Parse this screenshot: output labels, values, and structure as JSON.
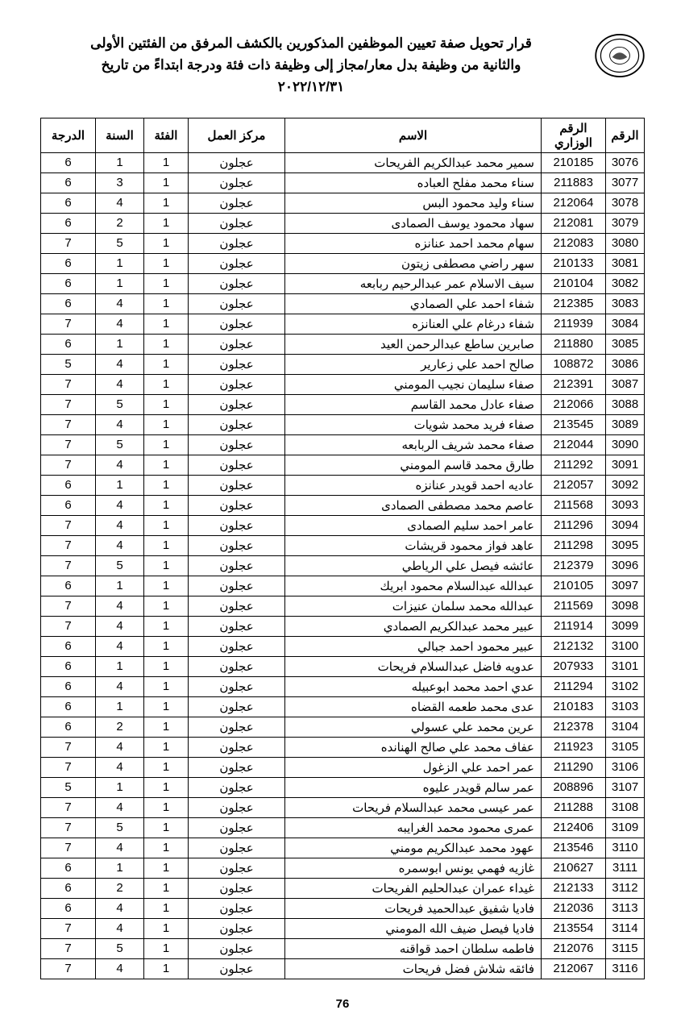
{
  "title": {
    "line1": "قرار تحويل صفة تعيين الموظفين المذكورين بالكشف المرفق من الفئتين الأولى",
    "line2": "والثانية من وظيفة بدل معار/مجاز إلى وظيفة ذات فئة ودرجة  ابتداءً من تاريخ",
    "line3": "٢٠٢٢/١٢/٣١"
  },
  "columns": {
    "seq": "الرقم",
    "ministerial": "الرقم الوزاري",
    "name": "الاسم",
    "workplace": "مركز العمل",
    "category": "الفئة",
    "year": "السنة",
    "grade": "الدرجة"
  },
  "rows": [
    {
      "seq": "3076",
      "min": "210185",
      "name": "سمير محمد عبدالكريم الفريحات",
      "work": "عجلون",
      "cat": "1",
      "year": "1",
      "grade": "6"
    },
    {
      "seq": "3077",
      "min": "211883",
      "name": "سناء محمد مفلح العباده",
      "work": "عجلون",
      "cat": "1",
      "year": "3",
      "grade": "6"
    },
    {
      "seq": "3078",
      "min": "212064",
      "name": "سناء وليد محمود البس",
      "work": "عجلون",
      "cat": "1",
      "year": "4",
      "grade": "6"
    },
    {
      "seq": "3079",
      "min": "212081",
      "name": "سهاد محمود يوسف الصمادى",
      "work": "عجلون",
      "cat": "1",
      "year": "2",
      "grade": "6"
    },
    {
      "seq": "3080",
      "min": "212083",
      "name": "سهام محمد احمد عنانزه",
      "work": "عجلون",
      "cat": "1",
      "year": "5",
      "grade": "7"
    },
    {
      "seq": "3081",
      "min": "210133",
      "name": "سهر راضي مصطفى زيتون",
      "work": "عجلون",
      "cat": "1",
      "year": "1",
      "grade": "6"
    },
    {
      "seq": "3082",
      "min": "210104",
      "name": "سيف الاسلام عمر عبدالرحيم ربابعه",
      "work": "عجلون",
      "cat": "1",
      "year": "1",
      "grade": "6"
    },
    {
      "seq": "3083",
      "min": "212385",
      "name": "شفاء احمد علي الصمادي",
      "work": "عجلون",
      "cat": "1",
      "year": "4",
      "grade": "6"
    },
    {
      "seq": "3084",
      "min": "211939",
      "name": "شفاء درغام علي العنانزه",
      "work": "عجلون",
      "cat": "1",
      "year": "4",
      "grade": "7"
    },
    {
      "seq": "3085",
      "min": "211880",
      "name": "صابرين ساطع عبدالرحمن العيد",
      "work": "عجلون",
      "cat": "1",
      "year": "1",
      "grade": "6"
    },
    {
      "seq": "3086",
      "min": "108872",
      "name": "صالح احمد علي زعارير",
      "work": "عجلون",
      "cat": "1",
      "year": "4",
      "grade": "5"
    },
    {
      "seq": "3087",
      "min": "212391",
      "name": "صفاء سليمان نجيب المومني",
      "work": "عجلون",
      "cat": "1",
      "year": "4",
      "grade": "7"
    },
    {
      "seq": "3088",
      "min": "212066",
      "name": "صفاء عادل محمد القاسم",
      "work": "عجلون",
      "cat": "1",
      "year": "5",
      "grade": "7"
    },
    {
      "seq": "3089",
      "min": "213545",
      "name": "صفاء فريد محمد شويات",
      "work": "عجلون",
      "cat": "1",
      "year": "4",
      "grade": "7"
    },
    {
      "seq": "3090",
      "min": "212044",
      "name": "صفاء محمد شريف الربابعه",
      "work": "عجلون",
      "cat": "1",
      "year": "5",
      "grade": "7"
    },
    {
      "seq": "3091",
      "min": "211292",
      "name": "طارق محمد قاسم المومني",
      "work": "عجلون",
      "cat": "1",
      "year": "4",
      "grade": "7"
    },
    {
      "seq": "3092",
      "min": "212057",
      "name": "عاديه احمد قويدر عنانزه",
      "work": "عجلون",
      "cat": "1",
      "year": "1",
      "grade": "6"
    },
    {
      "seq": "3093",
      "min": "211568",
      "name": "عاصم محمد مصطفى الصمادى",
      "work": "عجلون",
      "cat": "1",
      "year": "4",
      "grade": "6"
    },
    {
      "seq": "3094",
      "min": "211296",
      "name": "عامر احمد سليم الصمادى",
      "work": "عجلون",
      "cat": "1",
      "year": "4",
      "grade": "7"
    },
    {
      "seq": "3095",
      "min": "211298",
      "name": "عاهد فواز محمود قريشات",
      "work": "عجلون",
      "cat": "1",
      "year": "4",
      "grade": "7"
    },
    {
      "seq": "3096",
      "min": "212379",
      "name": "عائشه فيصل علي الرياطي",
      "work": "عجلون",
      "cat": "1",
      "year": "5",
      "grade": "7"
    },
    {
      "seq": "3097",
      "min": "210105",
      "name": "عبدالله عبدالسلام محمود ابريك",
      "work": "عجلون",
      "cat": "1",
      "year": "1",
      "grade": "6"
    },
    {
      "seq": "3098",
      "min": "211569",
      "name": "عبدالله محمد سلمان عنيزات",
      "work": "عجلون",
      "cat": "1",
      "year": "4",
      "grade": "7"
    },
    {
      "seq": "3099",
      "min": "211914",
      "name": "عبير محمد عبدالكريم الصمادي",
      "work": "عجلون",
      "cat": "1",
      "year": "4",
      "grade": "7"
    },
    {
      "seq": "3100",
      "min": "212132",
      "name": "عبير محمود احمد جبالي",
      "work": "عجلون",
      "cat": "1",
      "year": "4",
      "grade": "6"
    },
    {
      "seq": "3101",
      "min": "207933",
      "name": "عدويه فاضل عبدالسلام فريحات",
      "work": "عجلون",
      "cat": "1",
      "year": "1",
      "grade": "6"
    },
    {
      "seq": "3102",
      "min": "211294",
      "name": "عدي احمد محمد ابوعبيله",
      "work": "عجلون",
      "cat": "1",
      "year": "4",
      "grade": "6"
    },
    {
      "seq": "3103",
      "min": "210183",
      "name": "عدى محمد طعمه القضاه",
      "work": "عجلون",
      "cat": "1",
      "year": "1",
      "grade": "6"
    },
    {
      "seq": "3104",
      "min": "212378",
      "name": "عرين محمد علي عسولي",
      "work": "عجلون",
      "cat": "1",
      "year": "2",
      "grade": "6"
    },
    {
      "seq": "3105",
      "min": "211923",
      "name": "عفاف محمد علي صالح الهنانده",
      "work": "عجلون",
      "cat": "1",
      "year": "4",
      "grade": "7"
    },
    {
      "seq": "3106",
      "min": "211290",
      "name": "عمر احمد علي الزغول",
      "work": "عجلون",
      "cat": "1",
      "year": "4",
      "grade": "7"
    },
    {
      "seq": "3107",
      "min": "208896",
      "name": "عمر سالم قويدر عليوه",
      "work": "عجلون",
      "cat": "1",
      "year": "1",
      "grade": "5"
    },
    {
      "seq": "3108",
      "min": "211288",
      "name": "عمر عيسى محمد عبدالسلام فريحات",
      "work": "عجلون",
      "cat": "1",
      "year": "4",
      "grade": "7"
    },
    {
      "seq": "3109",
      "min": "212406",
      "name": "عمرى محمود محمد الغرايبه",
      "work": "عجلون",
      "cat": "1",
      "year": "5",
      "grade": "7"
    },
    {
      "seq": "3110",
      "min": "213546",
      "name": "عهود محمد عبدالكريم مومني",
      "work": "عجلون",
      "cat": "1",
      "year": "4",
      "grade": "7"
    },
    {
      "seq": "3111",
      "min": "210627",
      "name": "غازيه فهمي يونس ابوسمره",
      "work": "عجلون",
      "cat": "1",
      "year": "1",
      "grade": "6"
    },
    {
      "seq": "3112",
      "min": "212133",
      "name": "غيداء عمران عبدالحليم الفريحات",
      "work": "عجلون",
      "cat": "1",
      "year": "2",
      "grade": "6"
    },
    {
      "seq": "3113",
      "min": "212036",
      "name": "فاديا شفيق عبدالحميد فريحات",
      "work": "عجلون",
      "cat": "1",
      "year": "4",
      "grade": "6"
    },
    {
      "seq": "3114",
      "min": "213554",
      "name": "فاديا فيصل ضيف الله المومني",
      "work": "عجلون",
      "cat": "1",
      "year": "4",
      "grade": "7"
    },
    {
      "seq": "3115",
      "min": "212076",
      "name": "فاطمه سلطان احمد قواقنه",
      "work": "عجلون",
      "cat": "1",
      "year": "5",
      "grade": "7"
    },
    {
      "seq": "3116",
      "min": "212067",
      "name": "فائقه شلاش فضل فريحات",
      "work": "عجلون",
      "cat": "1",
      "year": "4",
      "grade": "7"
    }
  ],
  "page_number": "76"
}
